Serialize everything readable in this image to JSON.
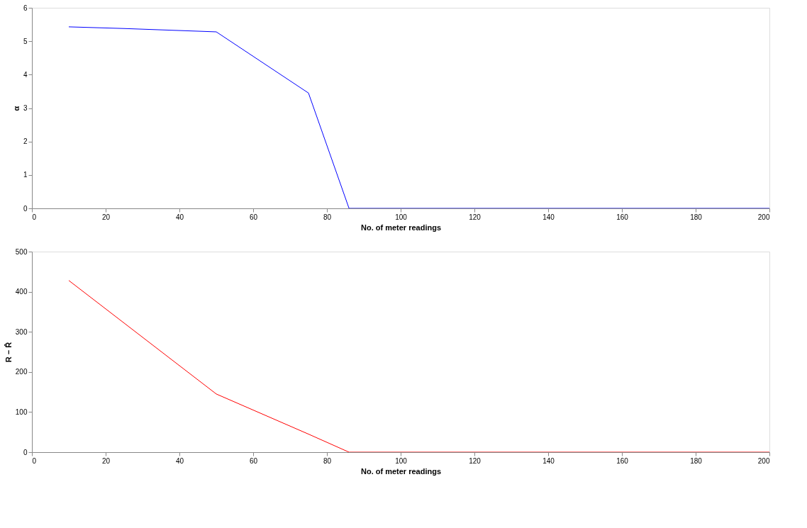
{
  "chart_data": [
    {
      "type": "line",
      "xlabel": "No. of meter readings",
      "ylabel": "α",
      "xlim": [
        0,
        200
      ],
      "ylim": [
        0,
        6
      ],
      "xticks": [
        0,
        20,
        40,
        60,
        80,
        100,
        120,
        140,
        160,
        180,
        200
      ],
      "yticks": [
        0,
        1,
        2,
        3,
        4,
        5,
        6
      ],
      "grid": false,
      "legend": false,
      "series": [
        {
          "color": "#0000ff",
          "x": [
            10,
            25,
            50,
            75,
            86,
            100,
            125,
            150,
            175,
            200
          ],
          "values": [
            5.43,
            5.38,
            5.28,
            3.45,
            0,
            0,
            0,
            0,
            0,
            0
          ]
        }
      ]
    },
    {
      "type": "line",
      "xlabel": "No. of meter readings",
      "ylabel": "R − R̂",
      "xlim": [
        0,
        200
      ],
      "ylim": [
        0,
        500
      ],
      "xticks": [
        0,
        20,
        40,
        60,
        80,
        100,
        120,
        140,
        160,
        180,
        200
      ],
      "yticks": [
        0,
        100,
        200,
        300,
        400,
        500
      ],
      "grid": false,
      "legend": false,
      "series": [
        {
          "color": "#ff0000",
          "x": [
            10,
            50,
            75,
            86,
            100,
            125,
            150,
            175,
            200
          ],
          "values": [
            428,
            145,
            45,
            0,
            0,
            0,
            0,
            0,
            0
          ]
        }
      ]
    }
  ]
}
